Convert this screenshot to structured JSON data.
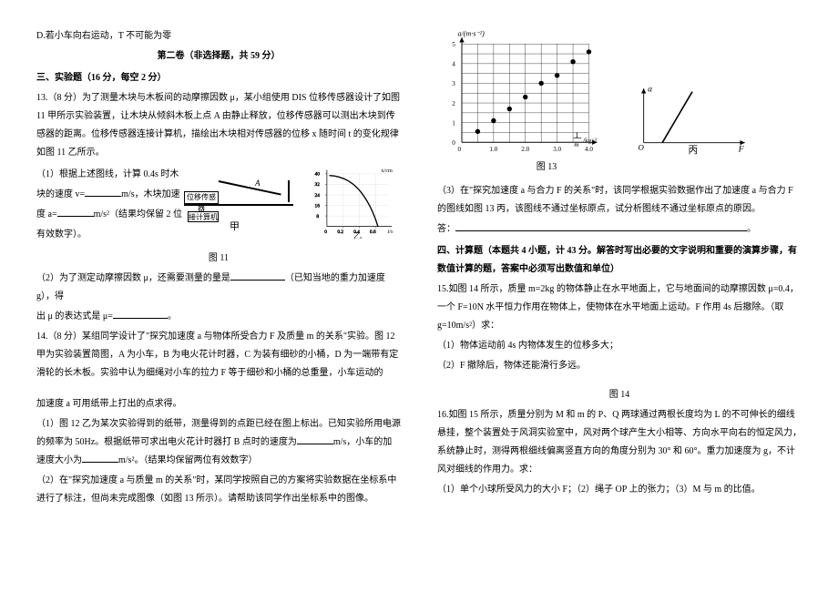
{
  "left": {
    "option_d": "D.若小车向右运动，T 不可能为零",
    "part2_title": "第二卷（非选择题，共 59 分）",
    "sec3_title": "三、实验题（16 分，每空 2 分）",
    "q13_intro": "13.（8 分）为了测量木块与木板间的动摩擦因数 μ，某小组使用 DIS 位移传感器设计了如图 11 甲所示实验装置，让木块从倾斜木板上点 A 由静止释放，位移传感器可以测出木块到传感器的距离。位移传感器连接计算机，描绘出木块相对传感器的位移 x 随时间 t 的变化规律如图 11 乙所示。",
    "q13_1a": "（1）根据上述图线，计算 0.4s 时木",
    "q13_1b": "块的速度 v=",
    "q13_1c": "m/s，木块加速",
    "q13_1d": "度 a=",
    "q13_1e": "m/s²（结果均保留 2 位",
    "q13_1f": "有效数字）。",
    "fig11_label": "图 11",
    "q13_2a": "（2）为了测定动摩擦因数 μ，还需要测量的量是",
    "q13_2b": "（已知当地的重力加速度 g），得",
    "q13_2c": "出 μ 的表达式是 μ=",
    "q13_2d": "。",
    "q14_intro": "14.（8 分）某组同学设计了\"探究加速度 a 与物体所受合力 F 及质量 m 的关系\"实验。图 12 甲为实验装置简图，A 为小车，B 为电火花计时器，C 为装有细砂的小桶，D 为一端带有定滑轮的长木板。实验中认为细绳对小车的拉力 F 等于细砂和小桶的总重量，小车运动的",
    "q14_gap": "加速度 a 可用纸带上打出的点求得。",
    "q14_1a": "（1）图 12 乙为某次实验得到的纸带，测量得到的点距已经在图上标出。已知实验所用电源的频率为 50Hz。根据纸带可求出电火花计时器打 B 点时的速度为",
    "q14_1b": "m/s，小车的加速度大小为",
    "q14_1c": "m/s²。（结果均保留两位有效数字）",
    "q14_2": "（2）在\"探究加速度 a 与质量 m 的关系\"时，某同学按照自己的方案将实验数据在坐标系中进行了标注，但尚未完成图像（如图 13 所示）。请帮助该同学作出坐标系中的图像。",
    "apparatus": {
      "sensor": "位移传感器",
      "computer": "接计算机",
      "jia": "甲",
      "yi": "乙",
      "A": "A"
    },
    "curve": {
      "ylabel": "x/cm",
      "xlabel": "t/s",
      "ymax": 40,
      "ystep": 8,
      "yticks": [
        "8",
        "16",
        "24",
        "32",
        "40"
      ],
      "xticks": [
        "0",
        "0.2",
        "0.4",
        "0.6"
      ]
    }
  },
  "right": {
    "scatter": {
      "ylabel": "a/(m·s⁻²)",
      "xlabel_num": "1/m",
      "xlabel_unit": "/kg⁻¹",
      "ylim": [
        0,
        5
      ],
      "xlim": [
        0,
        4.0
      ],
      "yticks": [
        "0",
        "1",
        "2",
        "3",
        "4",
        "5"
      ],
      "xticks": [
        "0",
        "1.0",
        "2.0",
        "3.0",
        "4.0"
      ],
      "grid_color": "#000000",
      "bg": "#ffffff",
      "point_color": "#000000",
      "point_size": 3,
      "points": [
        [
          0.5,
          0.55
        ],
        [
          1.0,
          1.1
        ],
        [
          1.5,
          1.7
        ],
        [
          2.0,
          2.3
        ],
        [
          2.5,
          3.0
        ],
        [
          3.0,
          3.4
        ],
        [
          3.5,
          4.1
        ],
        [
          4.0,
          4.6
        ]
      ]
    },
    "af": {
      "ylabel": "a",
      "xlabel": "F",
      "bing": "丙",
      "line_color": "#000000"
    },
    "fig13_label": "图 13",
    "q14_3a": "（3）在\"探究加速度 a 与合力 F 的关系\"时，该同学根据实验数据作出了加速度 a 与合力 F 的图线如图 13 丙，该图线不通过坐标原点，试分析图线不通过坐标原点的原因。",
    "q14_3b": "答：",
    "q14_3c": "。",
    "sec4_title": "四、计算题（本题共 4 小题，计 43 分。解答时写出必要的文字说明和重要的演算步骤，有数值计算的题，答案中必须写出数值和单位）",
    "q15_intro": "15.如图 14 所示，质量 m=2kg 的物体静止在水平地面上，它与地面间的动摩擦因数 μ=0.4，一个 F=10N 水平恒力作用在物体上，使物体在水平地面上运动。F 作用 4s 后撤除。（取 g=10m/s²）求：",
    "q15_1": "（1）物体运动前 4s 内物体发生的位移多大；",
    "q15_2": "（2）F 撤除后，物体还能滑行多远。",
    "fig14_label": "图 14",
    "q16_intro": "16.如图 15 所示，质量分别为 M 和 m 的 P、Q 两球通过两根长度均为 L 的不可伸长的细线悬挂，整个装置处于风洞实验室中，风对两个球产生大小相等、方向水平向右的恒定风力，系统静止时，测得两根细线偏离竖直方向的角度分别为 30° 和 60°。重力加速度为 g，不计风对细线的作用力。求：",
    "q16_1": "（1）单个小球所受风力的大小 F；（2）绳子 OP 上的张力；（3）M 与 m 的比值。"
  }
}
